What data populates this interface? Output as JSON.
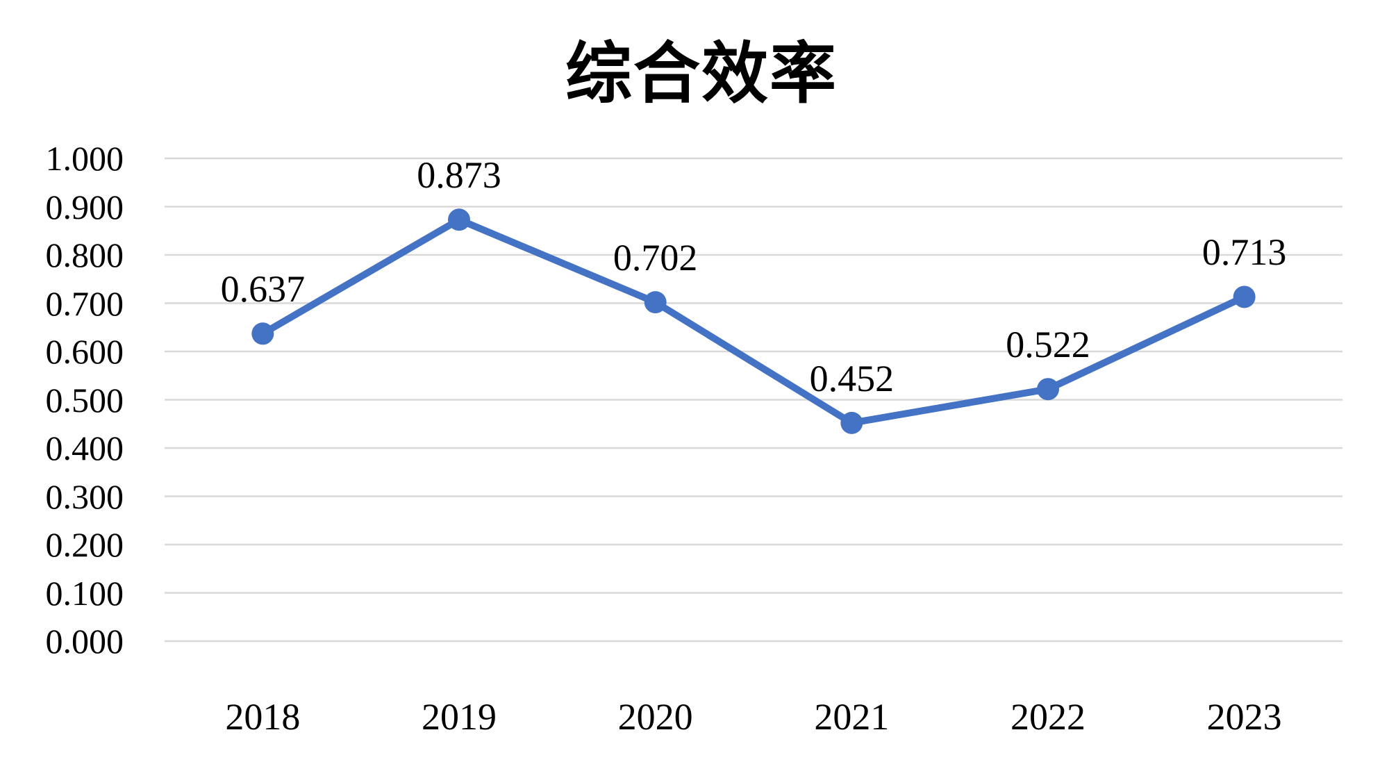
{
  "chart_data": {
    "type": "line",
    "title": "综合效率",
    "categories": [
      "2018",
      "2019",
      "2020",
      "2021",
      "2022",
      "2023"
    ],
    "series": [
      {
        "name": "综合效率",
        "values": [
          0.637,
          0.873,
          0.702,
          0.452,
          0.522,
          0.713
        ]
      }
    ],
    "data_labels": [
      "0.637",
      "0.873",
      "0.702",
      "0.452",
      "0.522",
      "0.713"
    ],
    "y_tick_labels": [
      "0.000",
      "0.100",
      "0.200",
      "0.300",
      "0.400",
      "0.500",
      "0.600",
      "0.700",
      "0.800",
      "0.900",
      "1.000"
    ],
    "xlabel": "",
    "ylabel": "",
    "ylim": [
      0.0,
      1.0
    ],
    "y_step": 0.1,
    "grid": true,
    "legend_position": "none",
    "colors": {
      "line": "#4472C4",
      "marker": "#4472C4",
      "grid": "#D9D9D9",
      "text": "#000000",
      "background": "#FFFFFF"
    }
  }
}
